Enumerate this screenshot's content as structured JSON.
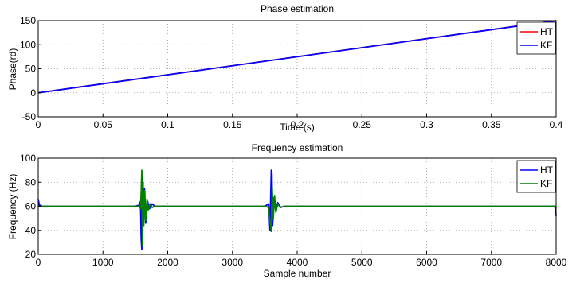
{
  "chart_data": [
    {
      "type": "line",
      "title": "Phase estimation",
      "xlabel": "Time (s)",
      "ylabel": "Phase(rd)",
      "xlim": [
        0,
        0.4
      ],
      "ylim": [
        -50,
        150
      ],
      "xticks": [
        "0",
        "0.05",
        "0.1",
        "0.15",
        "0.2",
        "0.25",
        "0.3",
        "0.35",
        "0.4"
      ],
      "xtick_values": [
        0,
        0.05,
        0.1,
        0.15,
        0.2,
        0.25,
        0.3,
        0.35,
        0.4
      ],
      "yticks": [
        "-50",
        "0",
        "50",
        "100",
        "150"
      ],
      "ytick_values": [
        -50,
        0,
        50,
        100,
        150
      ],
      "grid": "dotted",
      "legend": "top-right",
      "series": [
        {
          "name": "HT",
          "color": "#ff0000",
          "x": [
            0,
            0.4
          ],
          "y": [
            0,
            150
          ]
        },
        {
          "name": "KF",
          "color": "#0000ff",
          "x": [
            0,
            0.4
          ],
          "y": [
            0,
            150
          ]
        }
      ]
    },
    {
      "type": "line",
      "title": "Frequency estimation",
      "xlabel": "Sample number",
      "ylabel": "Frequency (Hz)",
      "xlim": [
        0,
        8000
      ],
      "ylim": [
        20,
        100
      ],
      "xticks": [
        "0",
        "1000",
        "2000",
        "3000",
        "4000",
        "5000",
        "6000",
        "7000",
        "8000"
      ],
      "xtick_values": [
        0,
        1000,
        2000,
        3000,
        4000,
        5000,
        6000,
        7000,
        8000
      ],
      "yticks": [
        "20",
        "40",
        "60",
        "80",
        "100"
      ],
      "ytick_values": [
        20,
        40,
        60,
        80,
        100
      ],
      "grid": "dotted",
      "legend": "top-right",
      "series": [
        {
          "name": "HT",
          "color": "#0000ff",
          "x": [
            0,
            20,
            40,
            60,
            1500,
            1560,
            1580,
            1590,
            1600,
            1610,
            1620,
            1640,
            1660,
            1690,
            1720,
            1760,
            1800,
            3500,
            3560,
            3580,
            3590,
            3600,
            3610,
            3620,
            3640,
            3670,
            3700,
            3740,
            3800,
            7980,
            7990,
            8000
          ],
          "y": [
            66,
            60,
            61,
            60,
            60,
            61,
            64,
            33,
            24,
            85,
            60,
            75,
            46,
            64,
            58,
            62,
            60,
            60,
            62,
            40,
            66,
            90,
            88,
            44,
            67,
            56,
            63,
            59,
            60,
            60,
            57,
            52
          ]
        },
        {
          "name": "KF",
          "color": "#007f00",
          "x": [
            0,
            40,
            1500,
            1560,
            1580,
            1590,
            1600,
            1610,
            1620,
            1630,
            1645,
            1660,
            1680,
            1700,
            1730,
            1760,
            1800,
            3500,
            3560,
            3580,
            3600,
            3615,
            3630,
            3650,
            3670,
            3700,
            3740,
            3800,
            8000
          ],
          "y": [
            60,
            60,
            60,
            60,
            58,
            72,
            90,
            27,
            80,
            44,
            73,
            48,
            66,
            57,
            62,
            59,
            60,
            60,
            59,
            48,
            39,
            76,
            49,
            69,
            55,
            62,
            59,
            60,
            60
          ]
        }
      ]
    }
  ]
}
